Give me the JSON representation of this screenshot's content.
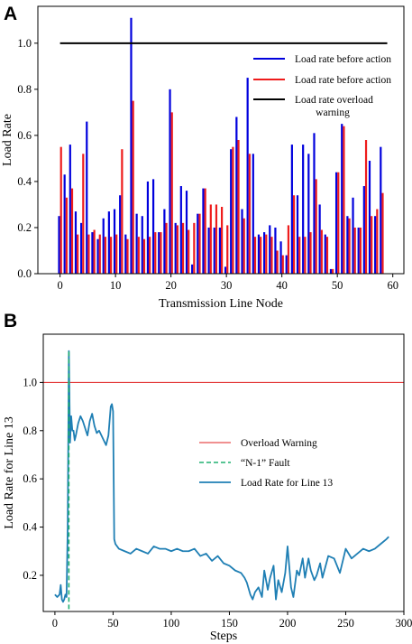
{
  "chart_data": [
    {
      "panel": "A",
      "type": "bar",
      "xlabel": "Transmission Line Node",
      "ylabel": "Load Rate",
      "xlim": [
        -4,
        62
      ],
      "ylim": [
        0,
        1.16
      ],
      "xticks": [
        0,
        10,
        20,
        30,
        40,
        50,
        60
      ],
      "yticks": [
        0.0,
        0.2,
        0.4,
        0.6,
        0.8,
        1.0
      ],
      "series": [
        {
          "name": "Load rate before action",
          "color": "#0000dd",
          "values": [
            0.25,
            0.43,
            0.56,
            0.27,
            0.22,
            0.66,
            0.18,
            0.15,
            0.24,
            0.27,
            0.28,
            0.34,
            0.17,
            1.11,
            0.26,
            0.25,
            0.4,
            0.41,
            0.18,
            0.28,
            0.8,
            0.22,
            0.38,
            0.36,
            0.04,
            0.26,
            0.37,
            0.2,
            0.2,
            0.2,
            0.03,
            0.54,
            0.68,
            0.28,
            0.85,
            0.52,
            0.17,
            0.18,
            0.21,
            0.2,
            0.14,
            0.08,
            0.56,
            0.34,
            0.56,
            0.52,
            0.61,
            0.3,
            0.17,
            0.02,
            0.44,
            0.65,
            0.25,
            0.33,
            0.2,
            0.38,
            0.49,
            0.25,
            0.55
          ]
        },
        {
          "name": "Load rate before action",
          "color": "#ee1c1c",
          "values": [
            0.55,
            0.33,
            0.37,
            0.17,
            0.52,
            0.17,
            0.19,
            0.17,
            0.16,
            0.16,
            0.17,
            0.54,
            0.15,
            0.75,
            0.16,
            0.15,
            0.16,
            0.18,
            0.18,
            0.22,
            0.7,
            0.21,
            0.22,
            0.19,
            0.22,
            0.26,
            0.37,
            0.3,
            0.3,
            0.29,
            0.21,
            0.55,
            0.58,
            0.24,
            0.52,
            0.16,
            0.16,
            0.17,
            0.16,
            0.1,
            0.08,
            0.21,
            0.34,
            0.16,
            0.16,
            0.18,
            0.41,
            0.19,
            0.16,
            0.02,
            0.44,
            0.64,
            0.24,
            0.2,
            0.2,
            0.58,
            0.25,
            0.28,
            0.35
          ]
        }
      ],
      "reference_line": {
        "name": "Load rate overload warning",
        "value": 1.0,
        "x_range": [
          0,
          59
        ],
        "color": "#000000"
      },
      "legend": {
        "position": "right",
        "labels": [
          "Load rate before action",
          "Load rate before action",
          "Load rate overload",
          "warning"
        ]
      }
    },
    {
      "panel": "B",
      "type": "line",
      "xlabel": "Steps",
      "ylabel": "Load Rate for Line 13",
      "xlim": [
        -10,
        300
      ],
      "ylim": [
        0.05,
        1.2
      ],
      "xticks": [
        0,
        50,
        100,
        150,
        200,
        250,
        300
      ],
      "yticks": [
        0.2,
        0.4,
        0.6,
        0.8,
        1.0
      ],
      "reference_line": {
        "name": "Overload Warning",
        "value": 1.0,
        "color": "#e02020"
      },
      "fault_line": {
        "name": "“N-1” Fault",
        "x": 12,
        "y_range": [
          0.06,
          1.13
        ],
        "color": "#20b070"
      },
      "series": [
        {
          "name": "Load Rate for Line 13",
          "color": "#1f7fb4",
          "x": [
            0,
            2,
            4,
            5,
            6,
            7,
            8,
            9,
            10,
            11,
            12,
            13,
            14,
            15,
            16,
            17,
            18,
            20,
            22,
            24,
            26,
            28,
            30,
            32,
            34,
            36,
            38,
            40,
            42,
            44,
            46,
            48,
            49,
            50,
            51,
            52,
            55,
            60,
            65,
            70,
            75,
            80,
            85,
            90,
            95,
            100,
            105,
            110,
            115,
            120,
            125,
            130,
            135,
            140,
            145,
            150,
            155,
            160,
            163,
            165,
            168,
            170,
            172,
            175,
            178,
            180,
            183,
            185,
            188,
            190,
            192,
            195,
            198,
            200,
            203,
            205,
            208,
            210,
            213,
            215,
            218,
            220,
            223,
            225,
            228,
            230,
            235,
            240,
            245,
            250,
            255,
            260,
            265,
            270,
            275,
            280,
            285,
            287
          ],
          "values": [
            0.12,
            0.11,
            0.12,
            0.16,
            0.1,
            0.09,
            0.1,
            0.12,
            0.11,
            0.4,
            1.13,
            0.75,
            0.86,
            0.8,
            0.8,
            0.76,
            0.78,
            0.83,
            0.86,
            0.84,
            0.81,
            0.78,
            0.84,
            0.87,
            0.82,
            0.79,
            0.8,
            0.78,
            0.76,
            0.74,
            0.78,
            0.9,
            0.91,
            0.88,
            0.35,
            0.33,
            0.31,
            0.3,
            0.29,
            0.31,
            0.3,
            0.29,
            0.32,
            0.31,
            0.31,
            0.3,
            0.31,
            0.3,
            0.3,
            0.31,
            0.28,
            0.29,
            0.26,
            0.28,
            0.25,
            0.24,
            0.22,
            0.21,
            0.19,
            0.17,
            0.12,
            0.1,
            0.13,
            0.15,
            0.11,
            0.22,
            0.14,
            0.19,
            0.24,
            0.1,
            0.18,
            0.13,
            0.21,
            0.32,
            0.15,
            0.11,
            0.22,
            0.2,
            0.27,
            0.19,
            0.27,
            0.22,
            0.18,
            0.2,
            0.25,
            0.19,
            0.28,
            0.27,
            0.21,
            0.31,
            0.27,
            0.29,
            0.31,
            0.3,
            0.31,
            0.33,
            0.35,
            0.36
          ]
        }
      ],
      "legend": {
        "position": "center-right",
        "labels": [
          "Overload Warning",
          "“N-1” Fault",
          "Load Rate for Line 13"
        ]
      }
    }
  ],
  "labels": {
    "panel_a": "A",
    "panel_b": "B"
  }
}
